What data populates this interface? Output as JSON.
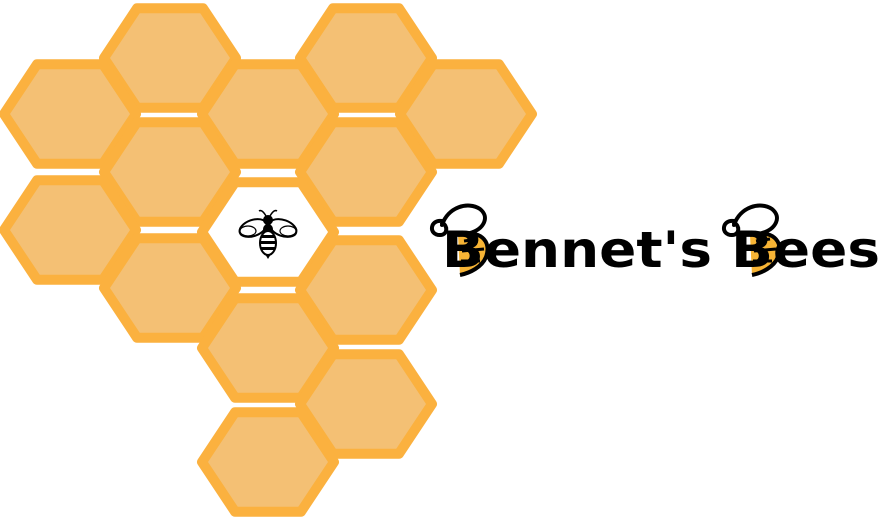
{
  "logo": {
    "wordmark_text": "Bennet's Bees",
    "colors": {
      "hex_fill": "#f4c074",
      "hex_stroke": "#fbb13f",
      "center_fill": "#ffffff",
      "ink": "#000000",
      "bee_stripe": "#f7b435"
    },
    "icons": [
      "bee-icon",
      "bee-letter-b-icon"
    ]
  }
}
